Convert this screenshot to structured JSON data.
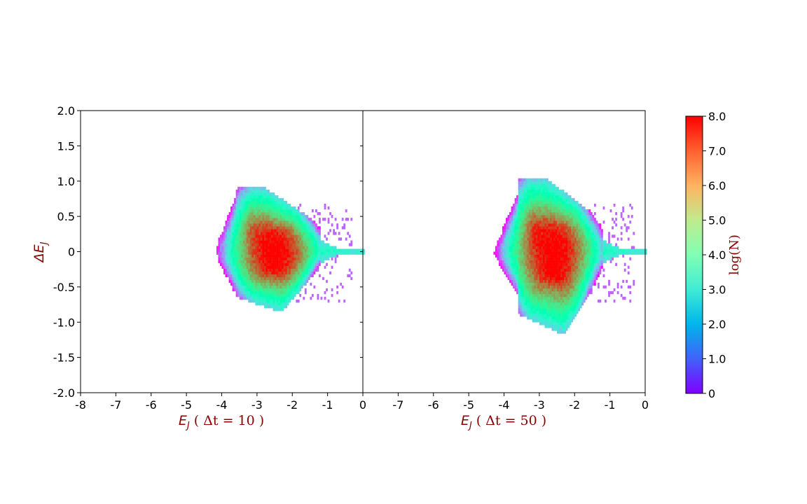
{
  "chart_data": [
    {
      "type": "heatmap",
      "title": "",
      "xlabel_symbol": "E",
      "xlabel_sub": "J",
      "xlabel_rest": " ( Δt = 10 )",
      "ylabel_symbol": "ΔE",
      "ylabel_sub": "J",
      "xlim": [
        -8,
        0
      ],
      "ylim": [
        -2.0,
        2.0
      ],
      "xticks": [
        -8,
        -7,
        -6,
        -5,
        -4,
        -3,
        -2,
        -1,
        0
      ],
      "xtick_labels": [
        "-8",
        "-7",
        "-6",
        "-5",
        "-4",
        "-3",
        "-2",
        "-1",
        "0"
      ],
      "yticks": [
        2.0,
        1.5,
        1.0,
        0.5,
        0,
        -0.5,
        -1.0,
        -1.5,
        -2.0
      ],
      "ytick_labels": [
        "2.0",
        "1.5",
        "1.0",
        "0.5",
        "0",
        "-0.5",
        "-1.0",
        "-1.5",
        "-2.0"
      ],
      "distribution": {
        "x_range": [
          -4.3,
          0
        ],
        "y_range": [
          -0.86,
          0.95
        ],
        "peak_center": [
          -2.5,
          0.0
        ],
        "peak_log_density": 8.0
      }
    },
    {
      "type": "heatmap",
      "title": "",
      "xlabel_symbol": "E",
      "xlabel_sub": "J",
      "xlabel_rest": " ( Δt = 50 )",
      "xlim": [
        -8,
        0
      ],
      "ylim": [
        -2.0,
        2.0
      ],
      "xticks": [
        -8,
        -7,
        -6,
        -5,
        -4,
        -3,
        -2,
        -1,
        0
      ],
      "xtick_labels": [
        "",
        "-7",
        "-6",
        "-5",
        "-4",
        "-3",
        "-2",
        "-1",
        "0"
      ],
      "distribution": {
        "x_range": [
          -4.3,
          0
        ],
        "y_range": [
          -1.18,
          1.08
        ],
        "peak_center": [
          -2.6,
          0.0
        ],
        "peak_log_density": 8.0
      }
    }
  ],
  "colorbar": {
    "label": "log(N)",
    "min": 0,
    "max": 8.0,
    "ticks": [
      8.0,
      7.0,
      6.0,
      5.0,
      4.0,
      3.0,
      2.0,
      1.0,
      0
    ],
    "tick_labels": [
      "8.0",
      "7.0",
      "6.0",
      "5.0",
      "4.0",
      "3.0",
      "2.0",
      "1.0",
      "0"
    ],
    "colormap": "rainbow"
  }
}
